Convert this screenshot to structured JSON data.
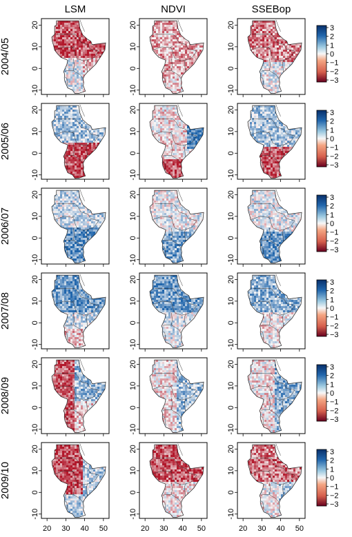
{
  "figure": {
    "columns": [
      "LSM",
      "NDVI",
      "SSEBop"
    ],
    "rows": [
      "2004/05",
      "2005/06",
      "2006/07",
      "2007/08",
      "2008/09",
      "2009/10"
    ],
    "y_ticks": [
      "20",
      "10",
      "0",
      "-10"
    ],
    "x_ticks": [
      "20",
      "30",
      "40",
      "50"
    ],
    "colorbar_ticks": [
      "3",
      "2",
      "1",
      "0",
      "−1",
      "−2",
      "−3"
    ],
    "colors": {
      "positive": "#1f5fa8",
      "neutral": "#f7f7f7",
      "negative": "#b2182b",
      "land": "#ffffff",
      "border": "#222222"
    },
    "anomaly_maps": [
      {
        "season": "2004/05",
        "LSM": "mostly negative, strong north-west and Horn",
        "NDVI": "mixed, moderate negative",
        "SSEBop": "negative north, mixed south"
      },
      {
        "season": "2005/06",
        "LSM": "positive north, strongly negative south",
        "NDVI": "positive Horn, negative south",
        "SSEBop": "positive north, negative south"
      },
      {
        "season": "2006/07",
        "LSM": "positive, strong south",
        "NDVI": "positive south and coast",
        "SSEBop": "positive south"
      },
      {
        "season": "2007/08",
        "LSM": "positive north, mixed south",
        "NDVI": "positive north",
        "SSEBop": "positive north, mixed"
      },
      {
        "season": "2008/09",
        "LSM": "negative west, positive north-east",
        "NDVI": "mixed, positive east",
        "SSEBop": "positive east, mixed"
      },
      {
        "season": "2009/10",
        "LSM": "negative centre, positive east",
        "NDVI": "negative north-west",
        "SSEBop": "negative north, positive south-east"
      }
    ]
  }
}
